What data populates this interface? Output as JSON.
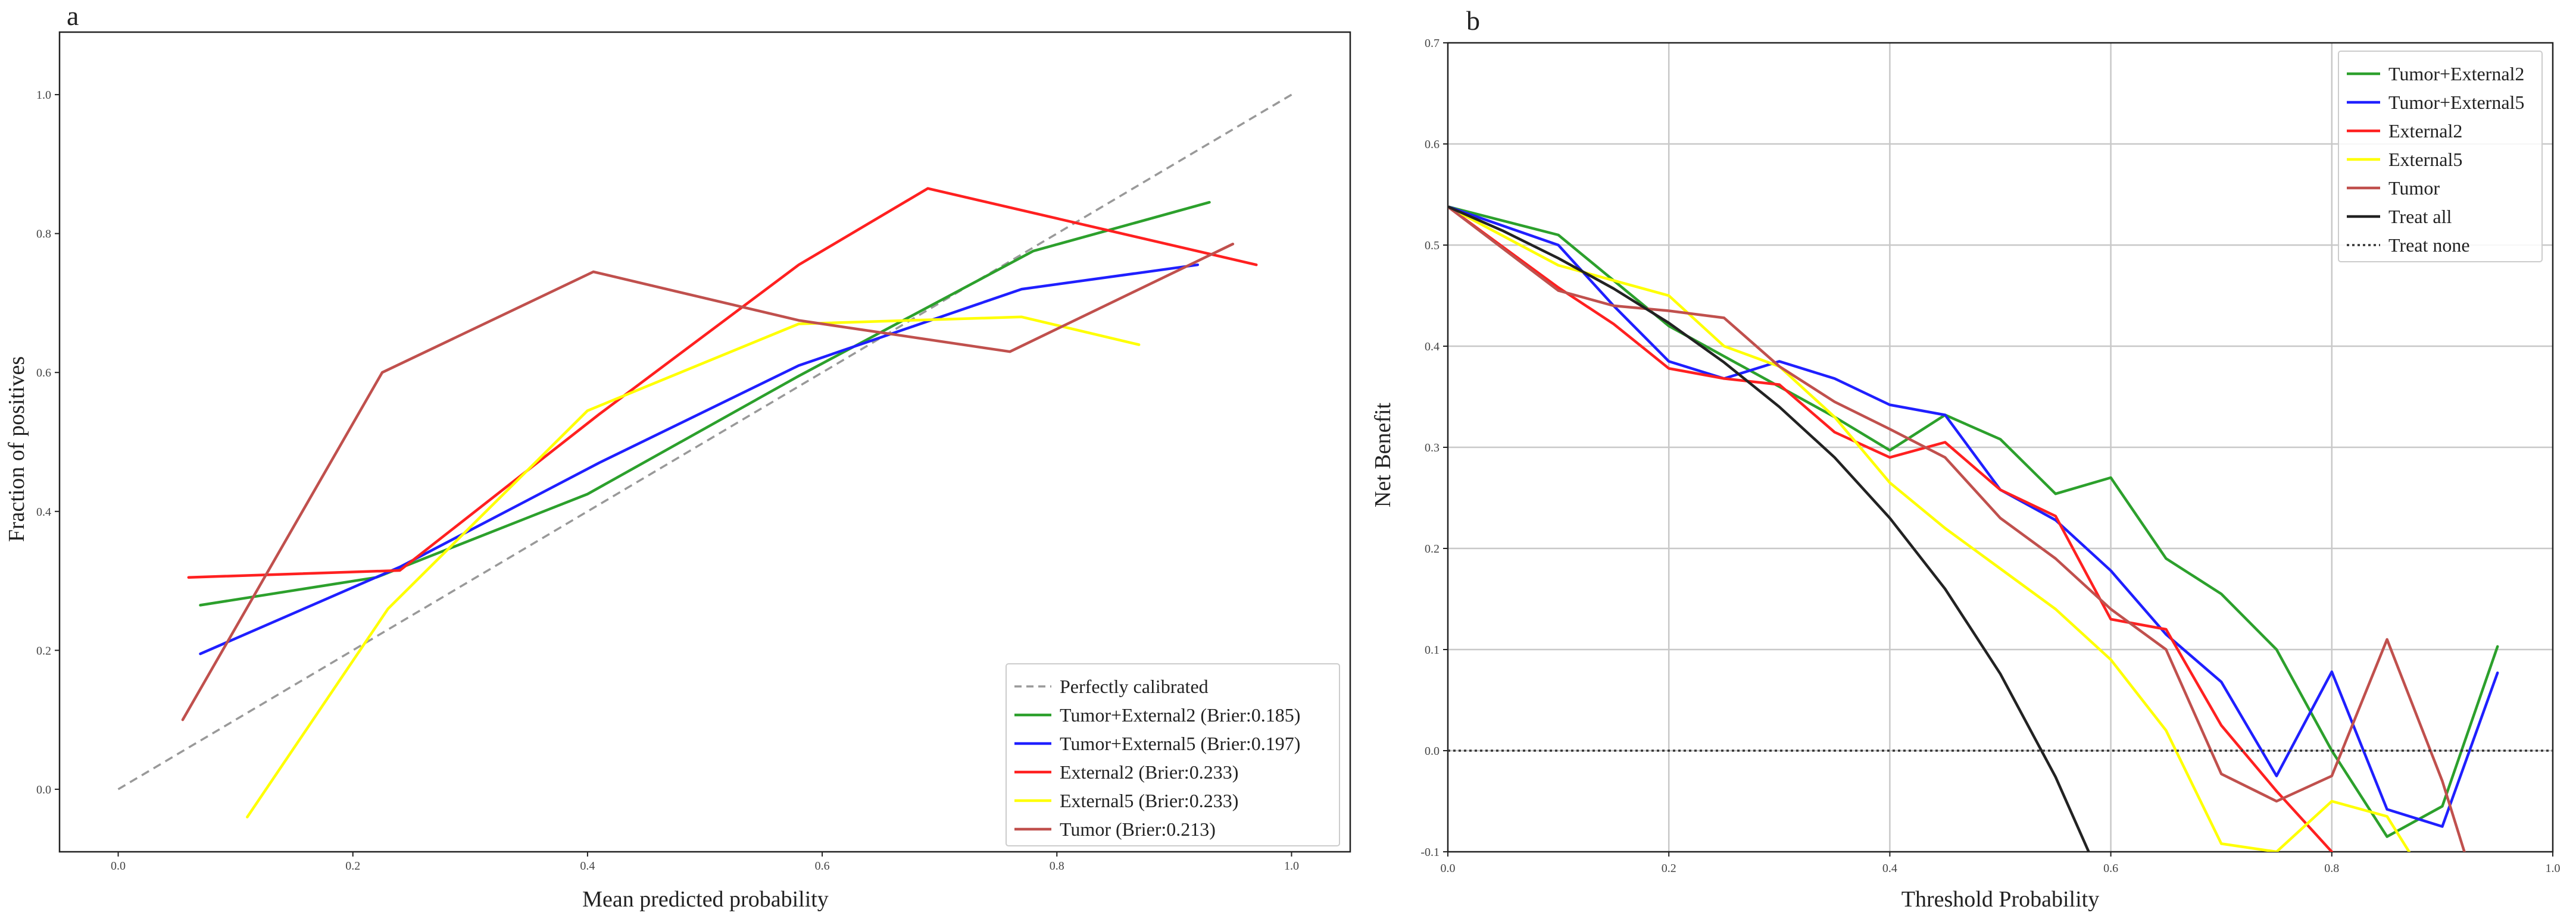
{
  "chart_data": [
    {
      "panel_label": "a",
      "type": "line",
      "title": "",
      "xlabel": "Mean predicted probability",
      "ylabel": "Fraction of positives",
      "xlim": [
        -0.05,
        1.05
      ],
      "ylim": [
        -0.09,
        1.09
      ],
      "xticks": [
        0.0,
        0.2,
        0.4,
        0.6,
        0.8,
        1.0
      ],
      "xtick_labels": [
        "0.0",
        "0.2",
        "0.4",
        "0.6",
        "0.8",
        "1.0"
      ],
      "yticks": [
        0.0,
        0.2,
        0.4,
        0.6,
        0.8,
        1.0
      ],
      "ytick_labels": [
        "0.0",
        "0.2",
        "0.4",
        "0.6",
        "0.8",
        "1.0"
      ],
      "grid": false,
      "legend_position": "bottom-right",
      "series": [
        {
          "name": "Perfectly calibrated",
          "label": "Perfectly calibrated",
          "color": "#999999",
          "dash": "dashed",
          "x": [
            0.0,
            1.0
          ],
          "y": [
            0.0,
            1.0
          ]
        },
        {
          "name": "Tumor+External2",
          "label": "Tumor+External2 (Brier:0.185)",
          "color": "#2ca02c",
          "dash": "solid",
          "x": [
            0.07,
            0.22,
            0.4,
            0.58,
            0.78,
            0.93
          ],
          "y": [
            0.265,
            0.305,
            0.425,
            0.595,
            0.775,
            0.845
          ]
        },
        {
          "name": "Tumor+External5",
          "label": "Tumor+External5 (Brier:0.197)",
          "color": "#1f1fff",
          "dash": "solid",
          "x": [
            0.07,
            0.24,
            0.41,
            0.58,
            0.77,
            0.92
          ],
          "y": [
            0.195,
            0.32,
            0.47,
            0.61,
            0.72,
            0.755
          ]
        },
        {
          "name": "External2",
          "label": "External2 (Brier:0.233)",
          "color": "#ff2020",
          "dash": "solid",
          "x": [
            0.06,
            0.24,
            0.41,
            0.58,
            0.69,
            0.97
          ],
          "y": [
            0.305,
            0.315,
            0.54,
            0.755,
            0.865,
            0.755
          ]
        },
        {
          "name": "External5",
          "label": "External5 (Brier:0.233)",
          "color": "#ffff00",
          "dash": "solid",
          "x": [
            0.11,
            0.23,
            0.4,
            0.58,
            0.77,
            0.87
          ],
          "y": [
            -0.04,
            0.26,
            0.545,
            0.67,
            0.68,
            0.64
          ]
        },
        {
          "name": "Tumor",
          "label": "Tumor (Brier:0.213)",
          "color": "#c0504d",
          "dash": "solid",
          "x": [
            0.055,
            0.225,
            0.405,
            0.58,
            0.76,
            0.95
          ],
          "y": [
            0.1,
            0.6,
            0.745,
            0.675,
            0.63,
            0.785
          ]
        }
      ]
    },
    {
      "panel_label": "b",
      "type": "line",
      "title": "",
      "xlabel": "Threshold Probability",
      "ylabel": "Net Benefit",
      "xlim": [
        0.0,
        1.0
      ],
      "ylim": [
        -0.1,
        0.7
      ],
      "xticks": [
        0.0,
        0.2,
        0.4,
        0.6,
        0.8,
        1.0
      ],
      "xtick_labels": [
        "0.0",
        "0.2",
        "0.4",
        "0.6",
        "0.8",
        "1.0"
      ],
      "yticks": [
        -0.1,
        0.0,
        0.1,
        0.2,
        0.3,
        0.4,
        0.5,
        0.6,
        0.7
      ],
      "ytick_labels": [
        "-0.1",
        "0.0",
        "0.1",
        "0.2",
        "0.3",
        "0.4",
        "0.5",
        "0.6",
        "0.7"
      ],
      "grid": true,
      "legend_position": "top-right",
      "series": [
        {
          "name": "Tumor+External2",
          "label": "Tumor+External2",
          "color": "#2ca02c",
          "dash": "solid",
          "x": [
            0.0,
            0.1,
            0.2,
            0.3,
            0.35,
            0.4,
            0.45,
            0.5,
            0.55,
            0.6,
            0.65,
            0.7,
            0.75,
            0.8,
            0.85,
            0.9,
            0.95
          ],
          "y": [
            0.538,
            0.51,
            0.42,
            0.36,
            0.33,
            0.297,
            0.332,
            0.308,
            0.254,
            0.27,
            0.19,
            0.155,
            0.1,
            0.0,
            -0.085,
            -0.055,
            0.103
          ]
        },
        {
          "name": "Tumor+External5",
          "label": "Tumor+External5",
          "color": "#1f1fff",
          "dash": "solid",
          "x": [
            0.0,
            0.1,
            0.15,
            0.2,
            0.25,
            0.3,
            0.35,
            0.4,
            0.45,
            0.5,
            0.55,
            0.6,
            0.65,
            0.7,
            0.75,
            0.8,
            0.85,
            0.9,
            0.95
          ],
          "y": [
            0.538,
            0.5,
            0.44,
            0.385,
            0.368,
            0.385,
            0.368,
            0.342,
            0.332,
            0.258,
            0.228,
            0.178,
            0.115,
            0.068,
            -0.025,
            0.078,
            -0.058,
            -0.075,
            0.077
          ]
        },
        {
          "name": "External2",
          "label": "External2",
          "color": "#ff2020",
          "dash": "solid",
          "x": [
            0.0,
            0.1,
            0.15,
            0.2,
            0.25,
            0.3,
            0.35,
            0.4,
            0.45,
            0.5,
            0.55,
            0.6,
            0.65,
            0.7,
            0.75,
            0.8
          ],
          "y": [
            0.538,
            0.458,
            0.422,
            0.378,
            0.368,
            0.362,
            0.315,
            0.29,
            0.305,
            0.258,
            0.232,
            0.13,
            0.12,
            0.025,
            -0.04,
            -0.1
          ]
        },
        {
          "name": "External5",
          "label": "External5",
          "color": "#ffff00",
          "dash": "solid",
          "x": [
            0.0,
            0.1,
            0.2,
            0.25,
            0.3,
            0.35,
            0.4,
            0.45,
            0.5,
            0.55,
            0.6,
            0.65,
            0.7,
            0.75,
            0.8,
            0.85,
            0.87
          ],
          "y": [
            0.538,
            0.48,
            0.45,
            0.4,
            0.38,
            0.33,
            0.265,
            0.22,
            0.18,
            0.14,
            0.09,
            0.02,
            -0.092,
            -0.1,
            -0.05,
            -0.065,
            -0.1
          ]
        },
        {
          "name": "Tumor",
          "label": "Tumor",
          "color": "#c0504d",
          "dash": "solid",
          "x": [
            0.0,
            0.1,
            0.15,
            0.2,
            0.25,
            0.3,
            0.35,
            0.4,
            0.45,
            0.5,
            0.55,
            0.6,
            0.65,
            0.7,
            0.75,
            0.8,
            0.85,
            0.9,
            0.92
          ],
          "y": [
            0.538,
            0.455,
            0.44,
            0.435,
            0.428,
            0.38,
            0.345,
            0.318,
            0.29,
            0.23,
            0.19,
            0.14,
            0.1,
            -0.023,
            -0.05,
            -0.025,
            0.11,
            -0.03,
            -0.1
          ]
        },
        {
          "name": "Treat all",
          "label": "Treat all",
          "color": "#222222",
          "dash": "solid",
          "x": [
            0.0,
            0.05,
            0.1,
            0.15,
            0.2,
            0.25,
            0.3,
            0.35,
            0.4,
            0.45,
            0.5,
            0.55,
            0.58
          ],
          "y": [
            0.538,
            0.514,
            0.487,
            0.457,
            0.423,
            0.384,
            0.34,
            0.29,
            0.23,
            0.16,
            0.076,
            -0.026,
            -0.1
          ]
        },
        {
          "name": "Treat none",
          "label": "Treat none",
          "color": "#333333",
          "dash": "dotted",
          "x": [
            0.0,
            1.0
          ],
          "y": [
            0.0,
            0.0
          ]
        }
      ]
    }
  ]
}
